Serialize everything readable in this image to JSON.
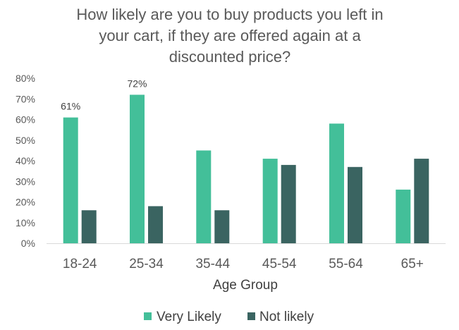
{
  "chart_data": {
    "type": "bar",
    "title_lines": [
      "How likely are you to buy products you left in",
      "your cart, if they are offered again at a",
      "discounted price?"
    ],
    "xlabel": "Age Group",
    "ylabel": "",
    "categories": [
      "18-24",
      "25-34",
      "35-44",
      "45-54",
      "55-64",
      "65+"
    ],
    "series": [
      {
        "name": "Very Likely",
        "color": "#43BF99",
        "values": [
          61,
          72,
          45,
          41,
          58,
          26
        ],
        "data_labels": [
          "61%",
          "72%",
          "",
          "",
          "",
          ""
        ]
      },
      {
        "name": "Not likely",
        "color": "#3A6461",
        "values": [
          16,
          18,
          16,
          38,
          37,
          41
        ],
        "data_labels": [
          "",
          "",
          "",
          "",
          "",
          ""
        ]
      }
    ],
    "ylim": [
      0,
      80
    ],
    "y_ticks": [
      0,
      10,
      20,
      30,
      40,
      50,
      60,
      70,
      80
    ],
    "y_tick_labels": [
      "0%",
      "10%",
      "20%",
      "30%",
      "40%",
      "50%",
      "60%",
      "70%",
      "80%"
    ],
    "grid": false,
    "legend_position": "bottom"
  }
}
